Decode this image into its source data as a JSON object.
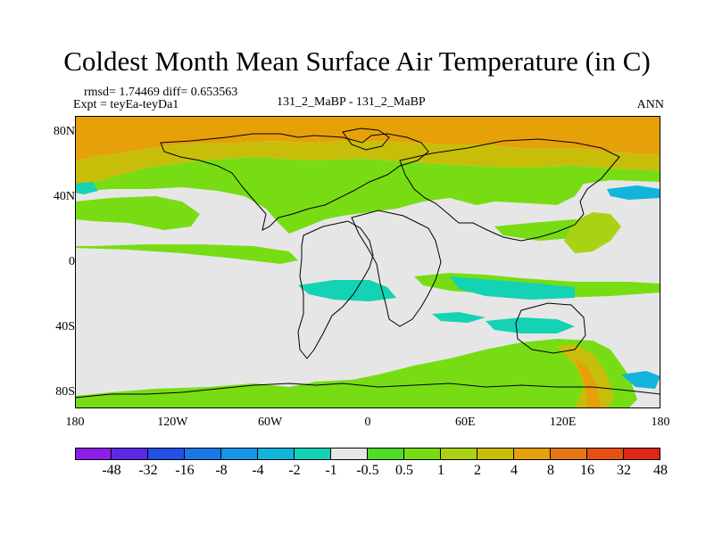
{
  "title": "Coldest Month Mean Surface Air Temperature (in C)",
  "subtitle": {
    "rmsd_line": "rmsd= 1.74469 diff= 0.653563",
    "expt_line": "Expt = teyEa-teyDa1",
    "center": "131_2_MaBP - 131_2_MaBP",
    "season": "ANN"
  },
  "map": {
    "projection": "cylindrical-equidistant",
    "lon_range": [
      -180,
      180
    ],
    "lat_range": [
      -90,
      90
    ],
    "background_value_band": "-0.5 to 0.5",
    "y_ticks": [
      {
        "label": "80N",
        "lat": 80
      },
      {
        "label": "40N",
        "lat": 40
      },
      {
        "label": "0",
        "lat": 0
      },
      {
        "label": "40S",
        "lat": -40
      },
      {
        "label": "80S",
        "lat": -80
      }
    ],
    "x_ticks": [
      {
        "label": "180",
        "lon": -180
      },
      {
        "label": "120W",
        "lon": -120
      },
      {
        "label": "60W",
        "lon": -60
      },
      {
        "label": "0",
        "lon": 0
      },
      {
        "label": "60E",
        "lon": 60
      },
      {
        "label": "120E",
        "lon": 120
      },
      {
        "label": "180",
        "lon": 180
      }
    ]
  },
  "colorbar": {
    "colors": [
      "#8c1ee6",
      "#5a2ae6",
      "#2450e6",
      "#1a78e6",
      "#1496e6",
      "#12b4dc",
      "#14d2b4",
      "#e6e6e6",
      "#50dc28",
      "#78dc14",
      "#aad214",
      "#c8be0a",
      "#e6a00a",
      "#e67814",
      "#e65014",
      "#dc2814"
    ],
    "labels": [
      "-48",
      "-32",
      "-16",
      "-8",
      "-4",
      "-2",
      "-1",
      "-0.5",
      "0.5",
      "1",
      "2",
      "4",
      "8",
      "16",
      "32",
      "48"
    ]
  }
}
